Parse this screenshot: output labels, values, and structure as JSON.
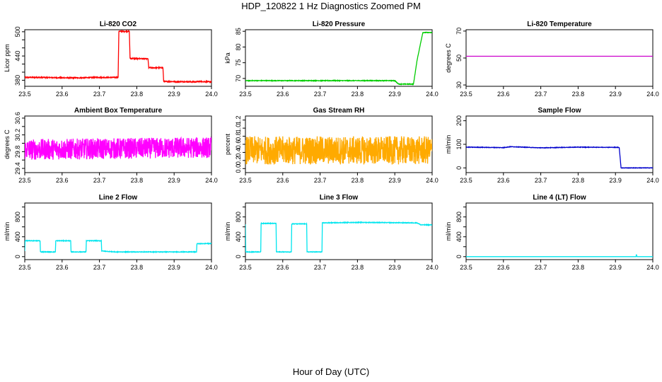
{
  "figure": {
    "title": "HDP_120822  1 Hz Diagnostics Zoomed PM",
    "xlabel": "Hour of Day (UTC)"
  },
  "chart_data": [
    {
      "type": "line",
      "title": "Li-820 CO2",
      "ylabel": "Licor ppm",
      "color": "#ff0000",
      "xlim": [
        23.5,
        24.0
      ],
      "ylim": [
        365,
        505
      ],
      "yticks": [
        380,
        400,
        420,
        440,
        460,
        480,
        500
      ],
      "ytick_labels": [
        "380",
        "",
        "",
        "440",
        "",
        "",
        "500"
      ],
      "series": [
        {
          "x": [
            23.5,
            23.55,
            23.6,
            23.65,
            23.7,
            23.75,
            23.752,
            23.78,
            23.782,
            23.83,
            23.832,
            23.87,
            23.872,
            23.96,
            23.962,
            24.0
          ],
          "y": [
            387,
            387,
            386,
            386,
            387,
            387,
            501,
            501,
            434,
            433,
            411,
            411,
            377,
            376,
            377,
            376
          ]
        }
      ],
      "noise": 1.2
    },
    {
      "type": "line",
      "title": "Li-820 Pressure",
      "ylabel": "kPa",
      "color": "#00cc00",
      "xlim": [
        23.5,
        24.0
      ],
      "ylim": [
        67.5,
        85.5
      ],
      "yticks": [
        70,
        75,
        80,
        85
      ],
      "ytick_labels": [
        "70",
        "75",
        "80",
        "85"
      ],
      "series": [
        {
          "x": [
            23.5,
            23.9,
            23.91,
            23.95,
            23.96,
            23.975,
            24.0
          ],
          "y": [
            69.3,
            69.3,
            68.2,
            68.2,
            76,
            84.6,
            84.6
          ]
        }
      ],
      "noise": 0.1
    },
    {
      "type": "line",
      "title": "Li-820 Temperature",
      "ylabel": "degrees C",
      "color": "#cc00cc",
      "xlim": [
        23.5,
        24.0
      ],
      "ylim": [
        29,
        71
      ],
      "yticks": [
        30,
        50,
        70
      ],
      "ytick_labels": [
        "30",
        "50",
        "70"
      ],
      "series": [
        {
          "x": [
            23.5,
            24.0
          ],
          "y": [
            51.3,
            51.3
          ]
        }
      ],
      "noise": 0
    },
    {
      "type": "line",
      "title": "Ambient Box Temperature",
      "ylabel": "degrees C",
      "color": "#ff00ff",
      "xlim": [
        23.5,
        24.0
      ],
      "ylim": [
        29.3,
        30.65
      ],
      "yticks": [
        29.4,
        29.6,
        29.8,
        30.0,
        30.2,
        30.4,
        30.6
      ],
      "ytick_labels": [
        "29.4",
        "",
        "29.8",
        "",
        "30.2",
        "",
        "30.6"
      ],
      "series": [
        {
          "x": [
            23.5,
            24.0
          ],
          "y": [
            29.85,
            29.9
          ]
        }
      ],
      "noise": 0.25
    },
    {
      "type": "line",
      "title": "Gas Stream RH",
      "ylabel": "percent",
      "color": "#ffaa00",
      "xlim": [
        23.5,
        24.0
      ],
      "ylim": [
        -0.1,
        1.3
      ],
      "yticks": [
        0.0,
        0.2,
        0.4,
        0.6,
        0.8,
        1.0,
        1.2
      ],
      "ytick_labels": [
        "0.0",
        "0.2",
        "0.4",
        "0.6",
        "0.8",
        "1.0",
        "1.2"
      ],
      "series": [
        {
          "x": [
            23.5,
            24.0
          ],
          "y": [
            0.45,
            0.45
          ]
        }
      ],
      "noise": 0.35
    },
    {
      "type": "line",
      "title": "Sample Flow",
      "ylabel": "ml/min",
      "color": "#0000cc",
      "xlim": [
        23.5,
        24.0
      ],
      "ylim": [
        -20,
        220
      ],
      "yticks": [
        0,
        100,
        200
      ],
      "ytick_labels": [
        "0",
        "100",
        "200"
      ],
      "series": [
        {
          "x": [
            23.5,
            23.6,
            23.62,
            23.7,
            23.8,
            23.91,
            23.915,
            24.0
          ],
          "y": [
            88,
            86,
            90,
            85,
            88,
            87,
            0,
            0
          ]
        }
      ],
      "noise": 1.0
    },
    {
      "type": "line",
      "title": "Line 2 Flow",
      "ylabel": "ml/min",
      "color": "#00e5ee",
      "xlim": [
        23.5,
        24.0
      ],
      "ylim": [
        -60,
        1080
      ],
      "yticks": [
        0,
        200,
        400,
        600,
        800,
        1000
      ],
      "ytick_labels": [
        "0",
        "",
        "400",
        "",
        "800",
        ""
      ],
      "series": [
        {
          "x": [
            23.5,
            23.501,
            23.541,
            23.542,
            23.582,
            23.583,
            23.623,
            23.624,
            23.664,
            23.665,
            23.705,
            23.706,
            23.74,
            23.96,
            23.961,
            24.0
          ],
          "y": [
            110,
            320,
            320,
            95,
            95,
            320,
            320,
            95,
            95,
            320,
            320,
            115,
            95,
            95,
            260,
            265
          ]
        }
      ],
      "noise": 6
    },
    {
      "type": "line",
      "title": "Line 3 Flow",
      "ylabel": "ml/min",
      "color": "#00e5ee",
      "xlim": [
        23.5,
        24.0
      ],
      "ylim": [
        -60,
        1080
      ],
      "yticks": [
        0,
        200,
        400,
        600,
        800,
        1000
      ],
      "ytick_labels": [
        "0",
        "",
        "400",
        "",
        "800",
        ""
      ],
      "series": [
        {
          "x": [
            23.5,
            23.501,
            23.541,
            23.542,
            23.582,
            23.583,
            23.623,
            23.624,
            23.664,
            23.665,
            23.705,
            23.706,
            23.8,
            23.96,
            23.97,
            24.0
          ],
          "y": [
            650,
            95,
            95,
            670,
            670,
            95,
            95,
            660,
            660,
            95,
            95,
            680,
            690,
            680,
            640,
            640
          ]
        }
      ],
      "noise": 6
    },
    {
      "type": "line",
      "title": "Line 4 (LT) Flow",
      "ylabel": "ml/min",
      "color": "#00e5ee",
      "xlim": [
        23.5,
        24.0
      ],
      "ylim": [
        -60,
        1080
      ],
      "yticks": [
        0,
        200,
        400,
        600,
        800,
        1000
      ],
      "ytick_labels": [
        "0",
        "",
        "400",
        "",
        "800",
        ""
      ],
      "series": [
        {
          "x": [
            23.5,
            23.955,
            23.956,
            23.957,
            23.958,
            24.0
          ],
          "y": [
            0,
            0,
            45,
            20,
            0,
            0
          ]
        }
      ],
      "noise": 0
    }
  ],
  "xticks": [
    23.5,
    23.6,
    23.7,
    23.8,
    23.9,
    24.0
  ],
  "xtick_labels": [
    "23.5",
    "23.6",
    "23.7",
    "23.8",
    "23.9",
    "24.0"
  ]
}
